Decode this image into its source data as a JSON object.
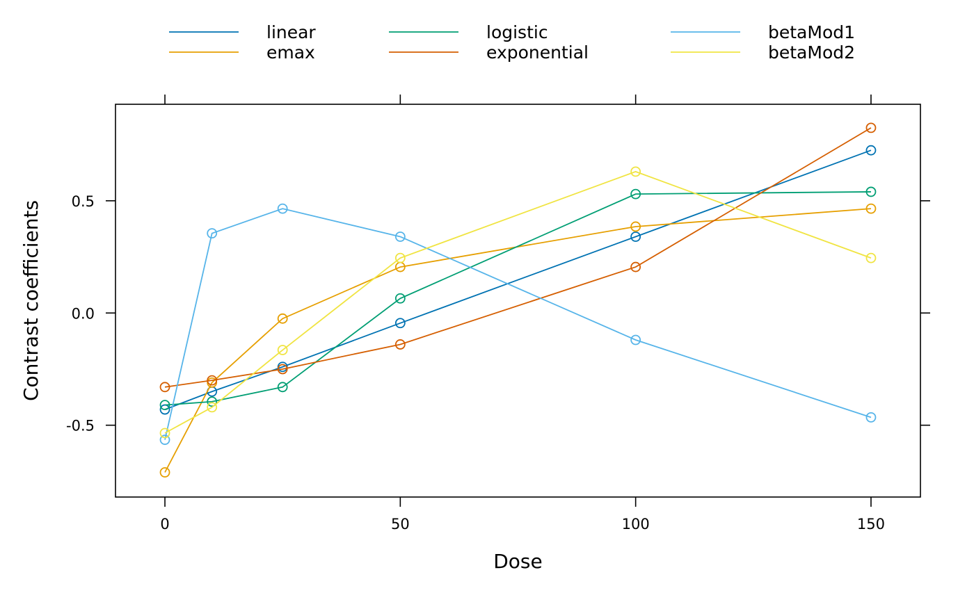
{
  "chart_data": {
    "type": "line",
    "xlabel": "Dose",
    "ylabel": "Contrast coefficients",
    "x": [
      0,
      10,
      25,
      50,
      100,
      150
    ],
    "xlim": [
      -10.5,
      160.5
    ],
    "ylim": [
      -0.82,
      0.93
    ],
    "x_ticks": [
      0,
      50,
      100,
      150
    ],
    "x_tick_labels": [
      "0",
      "50",
      "100",
      "150"
    ],
    "y_ticks": [
      -0.5,
      0.0,
      0.5
    ],
    "y_tick_labels": [
      "-0.5",
      "0.0",
      "0.5"
    ],
    "grid": false,
    "markers": "open-circle",
    "legend_position": "top",
    "series": [
      {
        "name": "linear",
        "color": "#0072B2",
        "values": [
          -0.43,
          -0.35,
          -0.24,
          -0.045,
          0.34,
          0.725
        ]
      },
      {
        "name": "emax",
        "color": "#E69F00",
        "values": [
          -0.71,
          -0.31,
          -0.025,
          0.205,
          0.385,
          0.465
        ]
      },
      {
        "name": "logistic",
        "color": "#009E73",
        "values": [
          -0.41,
          -0.395,
          -0.33,
          0.065,
          0.53,
          0.54
        ]
      },
      {
        "name": "exponential",
        "color": "#D55E00",
        "values": [
          -0.33,
          -0.3,
          -0.25,
          -0.14,
          0.205,
          0.825
        ]
      },
      {
        "name": "betaMod1",
        "color": "#56B4E9",
        "values": [
          -0.565,
          0.355,
          0.465,
          0.34,
          -0.12,
          -0.465
        ]
      },
      {
        "name": "betaMod2",
        "color": "#F0E442",
        "values": [
          -0.535,
          -0.42,
          -0.165,
          0.245,
          0.63,
          0.245
        ]
      }
    ]
  }
}
